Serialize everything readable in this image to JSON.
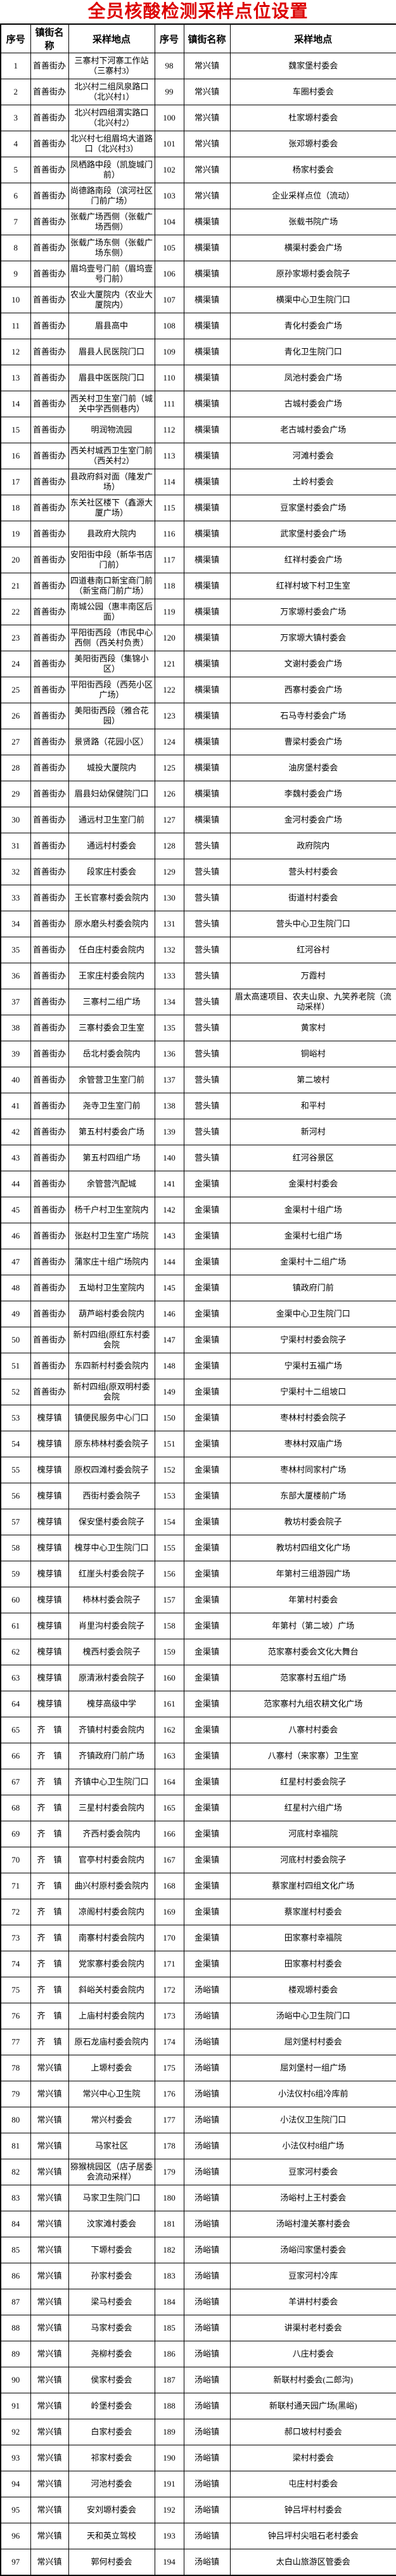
{
  "page_title": "全员核酸检测采样点位设置",
  "colors": {
    "title": "#dd0000",
    "border": "#000000",
    "text": "#000000",
    "background": "#ffffff"
  },
  "table": {
    "headers": [
      "序号",
      "镇街名称",
      "采样地点",
      "序号",
      "镇街名称",
      "采样地点"
    ],
    "rows": [
      [
        "1",
        "首善街办",
        "三寨村下河寨工作站（三寨村3）",
        "98",
        "常兴镇",
        "魏家堡村委会"
      ],
      [
        "2",
        "首善街办",
        "北兴村二组凤泉路口（北兴村1）",
        "99",
        "常兴镇",
        "车圈村委会"
      ],
      [
        "3",
        "首善街办",
        "北兴村四组渭实路口（北兴村2）",
        "100",
        "常兴镇",
        "杜家塬村委会"
      ],
      [
        "4",
        "首善街办",
        "北兴村七组眉坞大道路口（北兴村3）",
        "101",
        "常兴镇",
        "张邓塬村委会"
      ],
      [
        "5",
        "首善街办",
        "凤栖路中段（凯旋城门前）",
        "102",
        "常兴镇",
        "杨家村委会"
      ],
      [
        "6",
        "首善街办",
        "尚德路南段（滨河社区门前广场）",
        "103",
        "常兴镇",
        "企业采样点位（流动）"
      ],
      [
        "7",
        "首善街办",
        "张载广场西侧（张载广场西侧）",
        "104",
        "横渠镇",
        "张载书院广场"
      ],
      [
        "8",
        "首善街办",
        "张载广场东侧（张载广场东侧）",
        "105",
        "横渠镇",
        "横渠村委会广场"
      ],
      [
        "9",
        "首善街办",
        "眉坞壹号门前（眉坞壹号门前）",
        "106",
        "横渠镇",
        "原孙家塬村委会院子"
      ],
      [
        "10",
        "首善街办",
        "农业大厦院内（农业大厦院内）",
        "107",
        "横渠镇",
        "横渠中心卫生院门口"
      ],
      [
        "11",
        "首善街办",
        "眉县高中",
        "108",
        "横渠镇",
        "青化村委会广场"
      ],
      [
        "12",
        "首善街办",
        "眉县人民医院门口",
        "109",
        "横渠镇",
        "青化卫生院门口"
      ],
      [
        "13",
        "首善街办",
        "眉县中医医院门口",
        "110",
        "横渠镇",
        "凤池村委会广场"
      ],
      [
        "14",
        "首善街办",
        "西关村卫生室门前（城关中学西侧巷内）",
        "111",
        "横渠镇",
        "古城村委会广场"
      ],
      [
        "15",
        "首善街办",
        "明润物流园",
        "112",
        "横渠镇",
        "老古城村委会广场"
      ],
      [
        "16",
        "首善街办",
        "西关村城西卫生室门前（西关村2）",
        "113",
        "横渠镇",
        "河滩村委会"
      ],
      [
        "17",
        "首善街办",
        "县政府斜对面（隆发广场）",
        "114",
        "横渠镇",
        "土岭村委会"
      ],
      [
        "18",
        "首善街办",
        "东关社区楼下（鑫源大厦广场）",
        "115",
        "横渠镇",
        "豆家堡村委会广场"
      ],
      [
        "19",
        "首善街办",
        "县政府大院内",
        "116",
        "横渠镇",
        "武家堡村委会广场"
      ],
      [
        "20",
        "首善街办",
        "安阳街中段（新华书店门前）",
        "117",
        "横渠镇",
        "红祥村委会广场"
      ],
      [
        "21",
        "首善街办",
        "四道巷南口新宝商门前（新宝商门前广场）",
        "118",
        "横渠镇",
        "红祥村坡下村卫生室"
      ],
      [
        "22",
        "首善街办",
        "南城公园（惠丰南区后面）",
        "119",
        "横渠镇",
        "万家塬村委会广场"
      ],
      [
        "23",
        "首善街办",
        "平阳街西段（市民中心西侧（西关村负责）",
        "120",
        "横渠镇",
        "万家塬大镇村委会"
      ],
      [
        "24",
        "首善街办",
        "美阳街西段（集锦小区）",
        "121",
        "横渠镇",
        "文谢村委会广场"
      ],
      [
        "25",
        "首善街办",
        "平阳街西段（西苑小区广场）",
        "122",
        "横渠镇",
        "西寨村委会广场"
      ],
      [
        "26",
        "首善街办",
        "美阳街西段（雅合花园）",
        "123",
        "横渠镇",
        "石马寺村委会广场"
      ],
      [
        "27",
        "首善街办",
        "景贤路（花园小区）",
        "124",
        "横渠镇",
        "曹梁村委会广场"
      ],
      [
        "28",
        "首善街办",
        "城投大厦院内",
        "125",
        "横渠镇",
        "油房堡村委会"
      ],
      [
        "29",
        "首善街办",
        "眉县妇幼保健院门口",
        "126",
        "横渠镇",
        "李魏村委会广场"
      ],
      [
        "30",
        "首善街办",
        "通远村卫生室门前",
        "127",
        "横渠镇",
        "金河村委会广场"
      ],
      [
        "31",
        "首善街办",
        "通远村村委会",
        "128",
        "营头镇",
        "政府院内"
      ],
      [
        "32",
        "首善街办",
        "段家庄村委会",
        "129",
        "营头镇",
        "营头村村委会"
      ],
      [
        "33",
        "首善街办",
        "王长官寨村委会院内",
        "130",
        "营头镇",
        "街道村村委会"
      ],
      [
        "34",
        "首善街办",
        "原水磨头村委会院内",
        "131",
        "营头镇",
        "营头中心卫生院门口"
      ],
      [
        "35",
        "首善街办",
        "任白庄村委会院内",
        "132",
        "营头镇",
        "红河谷村"
      ],
      [
        "36",
        "首善街办",
        "王家庄村委会院内",
        "133",
        "营头镇",
        "万霞村"
      ],
      [
        "37",
        "首善街办",
        "三寨村二组广场",
        "134",
        "营头镇",
        "眉太高速项目、农夫山泉、九笑养老院（流动采样）"
      ],
      [
        "38",
        "首善街办",
        "三寨村委会卫生室",
        "135",
        "营头镇",
        "黄家村"
      ],
      [
        "39",
        "首善街办",
        "岳北村委会院内",
        "136",
        "营头镇",
        "铜峪村"
      ],
      [
        "40",
        "首善街办",
        "余管营卫生室门前",
        "137",
        "营头镇",
        "第二坡村"
      ],
      [
        "41",
        "首善街办",
        "尧寺卫生室门前",
        "138",
        "营头镇",
        "和平村"
      ],
      [
        "42",
        "首善街办",
        "第五村村委会广场",
        "139",
        "营头镇",
        "新河村"
      ],
      [
        "43",
        "首善街办",
        "第五村四组广场",
        "140",
        "营头镇",
        "红河谷景区"
      ],
      [
        "44",
        "首善街办",
        "余管营汽配城",
        "141",
        "金渠镇",
        "金渠村村委会"
      ],
      [
        "45",
        "首善街办",
        "杨千户村卫生室院内",
        "142",
        "金渠镇",
        "金渠村十组广场"
      ],
      [
        "46",
        "首善街办",
        "张赵村卫生室广场院",
        "143",
        "金渠镇",
        "金渠村七组广场"
      ],
      [
        "47",
        "首善街办",
        "蒲家庄十组广场院内",
        "144",
        "金渠镇",
        "金渠村十二组广场"
      ],
      [
        "48",
        "首善街办",
        "五坳村卫生室院内",
        "145",
        "金渠镇",
        "镇政府门前"
      ],
      [
        "49",
        "首善街办",
        "葫芦峪村委会院内",
        "146",
        "金渠镇",
        "金渠中心卫生院门口"
      ],
      [
        "50",
        "首善街办",
        "新村四组(原红东村委会院",
        "147",
        "金渠镇",
        "宁渠村村委会院子"
      ],
      [
        "51",
        "首善街办",
        "东四新村村委会院内",
        "148",
        "金渠镇",
        "宁渠村五福广场"
      ],
      [
        "52",
        "首善街办",
        "新村四组(原双明村委会院",
        "149",
        "金渠镇",
        "宁渠村十二组坡口"
      ],
      [
        "53",
        "槐芽镇",
        "镇便民服务中心门口",
        "150",
        "金渠镇",
        "枣林村村委会院子"
      ],
      [
        "54",
        "槐芽镇",
        "原东柿林村委会院子",
        "151",
        "金渠镇",
        "枣林村双庙广场"
      ],
      [
        "55",
        "槐芽镇",
        "原权四滩村委会院子",
        "152",
        "金渠镇",
        "枣林村同家村广场"
      ],
      [
        "56",
        "槐芽镇",
        "西街村委会院子",
        "153",
        "金渠镇",
        "东部大厦楼前广场"
      ],
      [
        "57",
        "槐芽镇",
        "保安堡村委会院子",
        "154",
        "金渠镇",
        "教坊村委会院子"
      ],
      [
        "58",
        "槐芽镇",
        "槐芽中心卫生院门口",
        "155",
        "金渠镇",
        "教坊村四组文化广场"
      ],
      [
        "59",
        "槐芽镇",
        "红崖头村委会院子",
        "156",
        "金渠镇",
        "年第村三组游园广场"
      ],
      [
        "60",
        "槐芽镇",
        "柿林村委会院子",
        "157",
        "金渠镇",
        "年第村村委会"
      ],
      [
        "61",
        "槐芽镇",
        "肖里沟村委会院子",
        "158",
        "金渠镇",
        "年第村（第二坡）广场"
      ],
      [
        "62",
        "槐芽镇",
        "槐西村委会院子",
        "159",
        "金渠镇",
        "范家寨村委会文化大舞台"
      ],
      [
        "63",
        "槐芽镇",
        "原清湫村委会院子",
        "160",
        "金渠镇",
        "范家寨村五组广场"
      ],
      [
        "64",
        "槐芽镇",
        "槐芽高级中学",
        "161",
        "金渠镇",
        "范家寨村九组农耕文化广场"
      ],
      [
        "65",
        "齐　镇",
        "齐镇村村委会院内",
        "162",
        "金渠镇",
        "八寨村村委会"
      ],
      [
        "66",
        "齐　镇",
        "齐镇政府门前广场",
        "163",
        "金渠镇",
        "八寨村（来家寨）卫生室"
      ],
      [
        "67",
        "齐　镇",
        "齐镇中心卫生院门口",
        "164",
        "金渠镇",
        "红星村村委会院子"
      ],
      [
        "68",
        "齐　镇",
        "三星村村委会院内",
        "165",
        "金渠镇",
        "红星村六组广场"
      ],
      [
        "69",
        "齐　镇",
        "齐西村委会院内",
        "166",
        "金渠镇",
        "河底村幸福院"
      ],
      [
        "70",
        "齐　镇",
        "官亭村村委会院内",
        "167",
        "金渠镇",
        "河底村村委会院子"
      ],
      [
        "71",
        "齐　镇",
        "曲兴村原村委会院内",
        "168",
        "金渠镇",
        "蔡家崖村四组文化广场"
      ],
      [
        "72",
        "齐　镇",
        "凉阁村村委会院内",
        "169",
        "金渠镇",
        "蔡家崖村村委会"
      ],
      [
        "73",
        "齐　镇",
        "南寨村村委会院内",
        "170",
        "金渠镇",
        "田家寨村幸福院"
      ],
      [
        "74",
        "齐　镇",
        "党家寨村委会院内",
        "171",
        "金渠镇",
        "田家寨村村委会"
      ],
      [
        "75",
        "齐　镇",
        "斜峪关村委会院内",
        "172",
        "汤峪镇",
        "楼观塬村委会"
      ],
      [
        "76",
        "齐　镇",
        "上庙村村委会院内",
        "173",
        "汤峪镇",
        "汤峪中心卫生院门口"
      ],
      [
        "77",
        "齐　镇",
        "原石龙庙村委会院内",
        "174",
        "汤峪镇",
        "屈刘堡村村委会"
      ],
      [
        "78",
        "常兴镇",
        "上塬村委会",
        "175",
        "汤峪镇",
        "屈刘堡村一组广场"
      ],
      [
        "79",
        "常兴镇",
        "常兴中心卫生院",
        "176",
        "汤峪镇",
        "小法仪村6组冷库前"
      ],
      [
        "80",
        "常兴镇",
        "常兴村委会",
        "177",
        "汤峪镇",
        "小法仪卫生院门口"
      ],
      [
        "81",
        "常兴镇",
        "马家社区",
        "178",
        "汤峪镇",
        "小法仪村8组广场"
      ],
      [
        "82",
        "常兴镇",
        "猕猴桃园区（店子居委会流动采样）",
        "179",
        "汤峪镇",
        "豆家河村委会"
      ],
      [
        "83",
        "常兴镇",
        "马家卫生院门口",
        "180",
        "汤峪镇",
        "汤峪村上王村委会"
      ],
      [
        "84",
        "常兴镇",
        "汶家滩村委会",
        "181",
        "汤峪镇",
        "汤峪村潼关寨村委会"
      ],
      [
        "85",
        "常兴镇",
        "下塬村委会",
        "182",
        "汤峪镇",
        "汤峪闫家堡村委会"
      ],
      [
        "86",
        "常兴镇",
        "孙家村委会",
        "183",
        "汤峪镇",
        "豆家河村冷库"
      ],
      [
        "87",
        "常兴镇",
        "梁马村委会",
        "184",
        "汤峪镇",
        "羊讲村村委会"
      ],
      [
        "88",
        "常兴镇",
        "马家村委会",
        "185",
        "汤峪镇",
        "讲渠村老村委会"
      ],
      [
        "89",
        "常兴镇",
        "尧柳村委会",
        "186",
        "汤峪镇",
        "八庄村委会"
      ],
      [
        "90",
        "常兴镇",
        "侯家村委会",
        "187",
        "汤峪镇",
        "新联村村委会(二郎沟)"
      ],
      [
        "91",
        "常兴镇",
        "岭堡村委会",
        "188",
        "汤峪镇",
        "新联村通天园广场(黑峪)"
      ],
      [
        "92",
        "常兴镇",
        "白家村委会",
        "189",
        "汤峪镇",
        "郝口坡村村委会"
      ],
      [
        "93",
        "常兴镇",
        "祁家村委会",
        "190",
        "汤峪镇",
        "梁村村委会"
      ],
      [
        "94",
        "常兴镇",
        "河池村委会",
        "191",
        "汤峪镇",
        "屯庄村村委会"
      ],
      [
        "95",
        "常兴镇",
        "安刘塬村委会",
        "192",
        "汤峪镇",
        "钟吕坪村村委会"
      ],
      [
        "96",
        "常兴镇",
        "天和英立驾校",
        "193",
        "汤峪镇",
        "钟吕坪村尖咀石老村委会"
      ],
      [
        "97",
        "常兴镇",
        "郭何村委会",
        "194",
        "汤峪镇",
        "太白山旅游区管委会"
      ]
    ]
  }
}
